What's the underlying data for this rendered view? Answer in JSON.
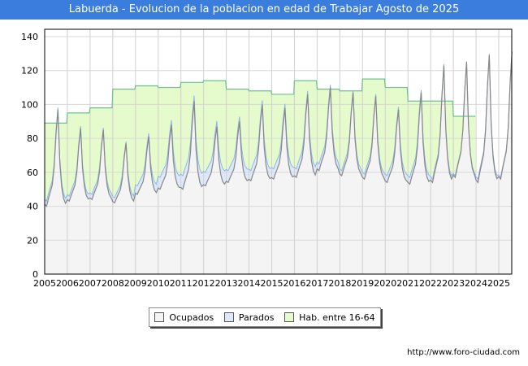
{
  "title": "Labuerda - Evolucion de la poblacion en edad de Trabajar Agosto de 2025",
  "credit": "http://www.foro-ciudad.com",
  "chart_data": {
    "type": "area",
    "title": "Labuerda - Evolucion de la poblacion en edad de Trabajar Agosto de 2025",
    "ylim": [
      0,
      145
    ],
    "yticks": [
      "0",
      "20",
      "40",
      "60",
      "80",
      "100",
      "120",
      "140"
    ],
    "xticks": [
      "2005",
      "2006",
      "2007",
      "2008",
      "2009",
      "2010",
      "2011",
      "2012",
      "2013",
      "2014",
      "2015",
      "2016",
      "2017",
      "2018",
      "2019",
      "2020",
      "2021",
      "2022",
      "2023",
      "2024",
      "2025"
    ],
    "last_month": "2025-08",
    "legend": [
      "Ocupados",
      "Parados",
      "Hab. entre 16-64"
    ],
    "colors": {
      "ocupados": "#f4f4f4",
      "ocupados_line": "#888888",
      "parados": "#dde9fb",
      "parados_line": "#8fb4ee",
      "hab": "#e6fbcc",
      "hab_line": "#70c090"
    },
    "hab_16_64_by_year": {
      "2005": 89,
      "2006": 95,
      "2007": 98,
      "2008": 109,
      "2009": 111,
      "2010": 110,
      "2011": 113,
      "2012": 114,
      "2013": 109,
      "2014": 108,
      "2015": 106,
      "2016": 114,
      "2017": 109,
      "2018": 108,
      "2019": 115,
      "2020": 110,
      "2021": 102,
      "2022": 102,
      "2023": 93
    },
    "ocupados_annual_min": [
      40,
      43,
      44,
      42,
      47,
      50,
      50,
      52,
      54,
      55,
      56,
      57,
      61,
      58,
      56,
      54,
      53,
      54,
      57,
      54,
      56
    ],
    "ocupados_annual_peak": [
      97,
      86,
      85,
      77,
      81,
      88,
      102,
      87,
      90,
      100,
      98,
      106,
      110,
      107,
      105,
      97,
      107,
      123,
      125,
      129,
      131
    ],
    "parados_gap_by_year": [
      3,
      3,
      3,
      3,
      5,
      7,
      8,
      8,
      7,
      6,
      6,
      5,
      4,
      3,
      3,
      4,
      4,
      2,
      1,
      2,
      1
    ]
  }
}
